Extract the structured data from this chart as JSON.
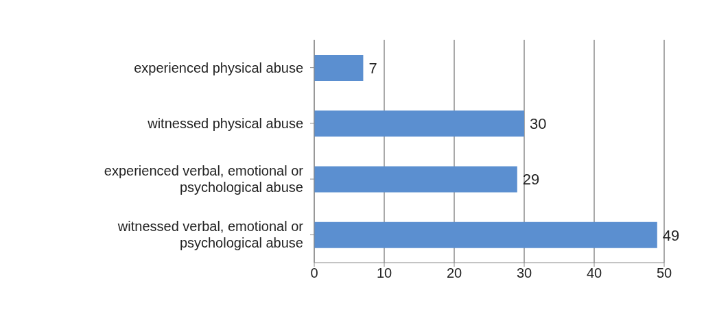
{
  "chart_data": {
    "type": "bar",
    "orientation": "horizontal",
    "categories": [
      "experienced physical abuse",
      "witnessed physical abuse",
      "experienced verbal, emotional or psychological abuse",
      "witnessed verbal, emotional or psychological abuse"
    ],
    "values": [
      7,
      30,
      29,
      49
    ],
    "color": "#5b8fd0",
    "xlim": [
      0,
      50
    ],
    "xticks": [
      0,
      10,
      20,
      30,
      40,
      50
    ],
    "grid": "x",
    "data_labels": true
  }
}
